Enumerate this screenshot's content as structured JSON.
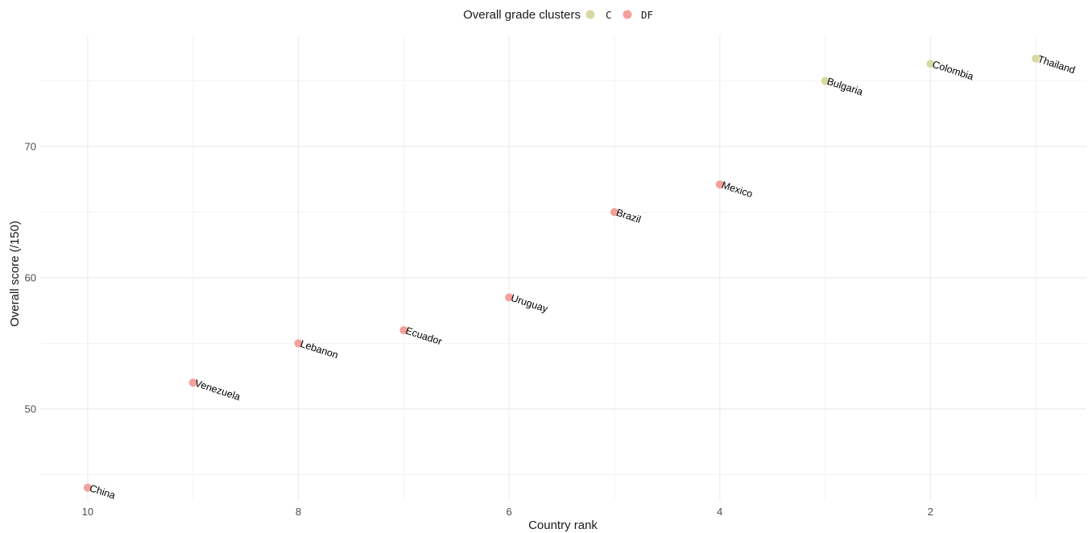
{
  "chart_data": {
    "type": "scatter",
    "xlabel": "Country rank",
    "ylabel": "Overall score (/150)",
    "xlim": [
      0.52,
      10.45
    ],
    "ylim": [
      43.0,
      78.4
    ],
    "x_reversed": true,
    "x_ticks": [
      10,
      8,
      6,
      4,
      2
    ],
    "y_ticks": [
      50,
      60,
      70
    ],
    "grid": true,
    "legend": {
      "title": "Overall grade clusters",
      "position": "top",
      "entries": [
        {
          "label": "C",
          "color": "#d8d8a4"
        },
        {
          "label": "DF",
          "color": "#f4a09c"
        }
      ]
    },
    "points": [
      {
        "label": "Thailand",
        "x": 1,
        "y": 76.7,
        "cluster": "C"
      },
      {
        "label": "Colombia",
        "x": 2,
        "y": 76.3,
        "cluster": "C"
      },
      {
        "label": "Bulgaria",
        "x": 3,
        "y": 75.0,
        "cluster": "C"
      },
      {
        "label": "Mexico",
        "x": 4,
        "y": 67.1,
        "cluster": "DF"
      },
      {
        "label": "Brazil",
        "x": 5,
        "y": 65.0,
        "cluster": "DF"
      },
      {
        "label": "Uruguay",
        "x": 6,
        "y": 58.5,
        "cluster": "DF"
      },
      {
        "label": "Ecuador",
        "x": 7,
        "y": 56.0,
        "cluster": "DF"
      },
      {
        "label": "Lebanon",
        "x": 8,
        "y": 55.0,
        "cluster": "DF"
      },
      {
        "label": "Venezuela",
        "x": 9,
        "y": 52.0,
        "cluster": "DF"
      },
      {
        "label": "China",
        "x": 10,
        "y": 44.0,
        "cluster": "DF"
      }
    ]
  }
}
